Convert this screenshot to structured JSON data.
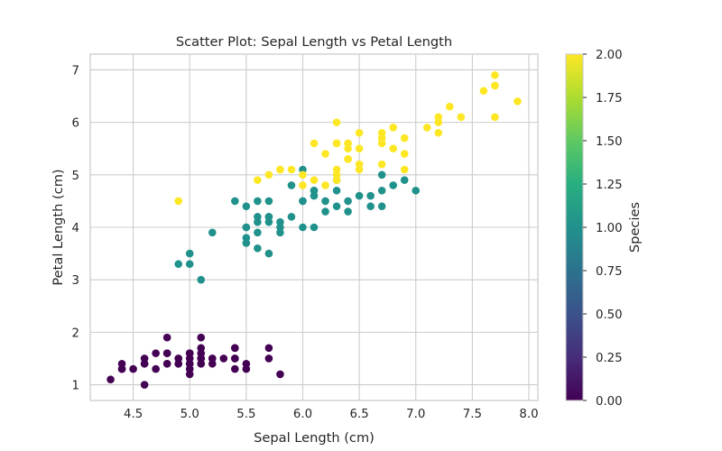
{
  "chart_data": {
    "type": "scatter",
    "title": "Scatter Plot: Sepal Length vs Petal Length",
    "xlabel": "Sepal Length (cm)",
    "ylabel": "Petal Length (cm)",
    "xlim": [
      4.12,
      8.08
    ],
    "ylim": [
      0.7,
      7.3
    ],
    "xticks": [
      4.5,
      5.0,
      5.5,
      6.0,
      6.5,
      7.0,
      7.5,
      8.0
    ],
    "xtick_labels": [
      "4.5",
      "5.0",
      "5.5",
      "6.0",
      "6.5",
      "7.0",
      "7.5",
      "8.0"
    ],
    "yticks": [
      1,
      2,
      3,
      4,
      5,
      6,
      7
    ],
    "ytick_labels": [
      "1",
      "2",
      "3",
      "4",
      "5",
      "6",
      "7"
    ],
    "grid": true,
    "colormap": "viridis",
    "colors": {
      "0": "#440154",
      "1": "#21918c",
      "2": "#fde725"
    },
    "colorbar": {
      "label": "Species",
      "range": [
        0.0,
        2.0
      ],
      "ticks": [
        0.0,
        0.25,
        0.5,
        0.75,
        1.0,
        1.25,
        1.5,
        1.75,
        2.0
      ],
      "tick_labels": [
        "0.00",
        "0.25",
        "0.50",
        "0.75",
        "1.00",
        "1.25",
        "1.50",
        "1.75",
        "2.00"
      ]
    },
    "series": [
      {
        "species_value": 0,
        "points": [
          [
            5.1,
            1.4
          ],
          [
            4.9,
            1.4
          ],
          [
            4.7,
            1.3
          ],
          [
            4.6,
            1.5
          ],
          [
            5.0,
            1.4
          ],
          [
            5.4,
            1.7
          ],
          [
            4.6,
            1.4
          ],
          [
            5.0,
            1.5
          ],
          [
            4.4,
            1.4
          ],
          [
            4.9,
            1.5
          ],
          [
            5.4,
            1.5
          ],
          [
            4.8,
            1.6
          ],
          [
            4.8,
            1.4
          ],
          [
            4.3,
            1.1
          ],
          [
            5.8,
            1.2
          ],
          [
            5.7,
            1.5
          ],
          [
            5.4,
            1.3
          ],
          [
            5.1,
            1.4
          ],
          [
            5.7,
            1.7
          ],
          [
            5.1,
            1.5
          ],
          [
            5.4,
            1.7
          ],
          [
            5.1,
            1.5
          ],
          [
            4.6,
            1.0
          ],
          [
            5.1,
            1.7
          ],
          [
            4.8,
            1.9
          ],
          [
            5.0,
            1.6
          ],
          [
            5.0,
            1.6
          ],
          [
            5.2,
            1.5
          ],
          [
            5.2,
            1.4
          ],
          [
            4.7,
            1.6
          ],
          [
            4.8,
            1.6
          ],
          [
            5.4,
            1.5
          ],
          [
            5.2,
            1.5
          ],
          [
            5.5,
            1.4
          ],
          [
            4.9,
            1.5
          ],
          [
            5.0,
            1.2
          ],
          [
            5.5,
            1.3
          ],
          [
            4.9,
            1.4
          ],
          [
            4.4,
            1.3
          ],
          [
            5.1,
            1.5
          ],
          [
            5.0,
            1.3
          ],
          [
            4.5,
            1.3
          ],
          [
            4.4,
            1.3
          ],
          [
            5.0,
            1.6
          ],
          [
            5.1,
            1.9
          ],
          [
            4.8,
            1.4
          ],
          [
            5.1,
            1.6
          ],
          [
            4.6,
            1.4
          ],
          [
            5.3,
            1.5
          ],
          [
            5.0,
            1.4
          ]
        ]
      },
      {
        "species_value": 1,
        "points": [
          [
            7.0,
            4.7
          ],
          [
            6.4,
            4.5
          ],
          [
            6.9,
            4.9
          ],
          [
            5.5,
            4.0
          ],
          [
            6.5,
            4.6
          ],
          [
            5.7,
            4.5
          ],
          [
            6.3,
            4.7
          ],
          [
            4.9,
            3.3
          ],
          [
            6.6,
            4.6
          ],
          [
            5.2,
            3.9
          ],
          [
            5.0,
            3.5
          ],
          [
            5.9,
            4.2
          ],
          [
            6.0,
            4.0
          ],
          [
            6.1,
            4.7
          ],
          [
            5.6,
            3.6
          ],
          [
            6.7,
            4.4
          ],
          [
            5.6,
            4.5
          ],
          [
            5.8,
            4.1
          ],
          [
            6.2,
            4.5
          ],
          [
            5.6,
            3.9
          ],
          [
            5.9,
            4.8
          ],
          [
            6.1,
            4.0
          ],
          [
            6.3,
            4.9
          ],
          [
            6.1,
            4.7
          ],
          [
            6.4,
            4.3
          ],
          [
            6.6,
            4.4
          ],
          [
            6.8,
            4.8
          ],
          [
            6.7,
            5.0
          ],
          [
            6.0,
            4.5
          ],
          [
            5.7,
            3.5
          ],
          [
            5.5,
            3.8
          ],
          [
            5.5,
            3.7
          ],
          [
            5.8,
            3.9
          ],
          [
            6.0,
            5.1
          ],
          [
            5.4,
            4.5
          ],
          [
            6.0,
            4.5
          ],
          [
            6.7,
            4.7
          ],
          [
            6.3,
            4.4
          ],
          [
            5.6,
            4.1
          ],
          [
            5.5,
            4.0
          ],
          [
            5.5,
            4.4
          ],
          [
            6.1,
            4.6
          ],
          [
            5.8,
            4.0
          ],
          [
            5.0,
            3.3
          ],
          [
            5.6,
            4.2
          ],
          [
            5.7,
            4.2
          ],
          [
            5.7,
            4.2
          ],
          [
            6.2,
            4.3
          ],
          [
            5.1,
            3.0
          ],
          [
            5.7,
            4.1
          ]
        ]
      },
      {
        "species_value": 2,
        "points": [
          [
            6.3,
            6.0
          ],
          [
            5.8,
            5.1
          ],
          [
            7.1,
            5.9
          ],
          [
            6.3,
            5.6
          ],
          [
            6.5,
            5.8
          ],
          [
            7.6,
            6.6
          ],
          [
            4.9,
            4.5
          ],
          [
            7.3,
            6.3
          ],
          [
            6.7,
            5.8
          ],
          [
            7.2,
            6.1
          ],
          [
            6.5,
            5.1
          ],
          [
            6.4,
            5.3
          ],
          [
            6.8,
            5.5
          ],
          [
            5.7,
            5.0
          ],
          [
            5.8,
            5.1
          ],
          [
            6.4,
            5.3
          ],
          [
            6.5,
            5.5
          ],
          [
            7.7,
            6.7
          ],
          [
            7.7,
            6.9
          ],
          [
            6.0,
            5.0
          ],
          [
            6.9,
            5.7
          ],
          [
            5.6,
            4.9
          ],
          [
            7.7,
            6.7
          ],
          [
            6.3,
            4.9
          ],
          [
            6.7,
            5.7
          ],
          [
            7.2,
            6.0
          ],
          [
            6.2,
            4.8
          ],
          [
            6.1,
            4.9
          ],
          [
            6.4,
            5.6
          ],
          [
            7.2,
            5.8
          ],
          [
            7.4,
            6.1
          ],
          [
            7.9,
            6.4
          ],
          [
            6.4,
            5.6
          ],
          [
            6.3,
            5.1
          ],
          [
            6.1,
            5.6
          ],
          [
            7.7,
            6.1
          ],
          [
            6.3,
            5.6
          ],
          [
            6.4,
            5.5
          ],
          [
            6.0,
            4.8
          ],
          [
            6.9,
            5.4
          ],
          [
            6.7,
            5.6
          ],
          [
            6.9,
            5.1
          ],
          [
            5.8,
            5.1
          ],
          [
            6.8,
            5.9
          ],
          [
            6.7,
            5.7
          ],
          [
            6.7,
            5.2
          ],
          [
            6.3,
            5.0
          ],
          [
            6.5,
            5.2
          ],
          [
            6.2,
            5.4
          ],
          [
            5.9,
            5.1
          ]
        ]
      }
    ]
  }
}
